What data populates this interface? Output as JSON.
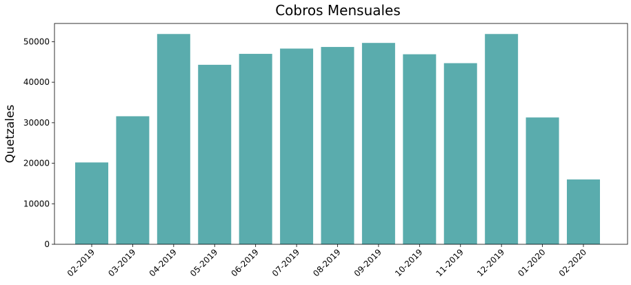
{
  "chart_data": {
    "type": "bar",
    "title": "Cobros Mensuales",
    "xlabel": "",
    "ylabel": "Quetzales",
    "categories": [
      "02-2019",
      "03-2019",
      "04-2019",
      "05-2019",
      "06-2019",
      "07-2019",
      "08-2019",
      "09-2019",
      "10-2019",
      "11-2019",
      "12-2019",
      "01-2020",
      "02-2020"
    ],
    "values": [
      20200,
      31600,
      51900,
      44300,
      47000,
      48300,
      48700,
      49700,
      46900,
      44700,
      51900,
      31300,
      16000
    ],
    "ylim": [
      0,
      54500
    ],
    "yticks": [
      0,
      10000,
      20000,
      30000,
      40000,
      50000
    ],
    "grid": false,
    "legend": "none",
    "bar_color": "#5aacad"
  }
}
